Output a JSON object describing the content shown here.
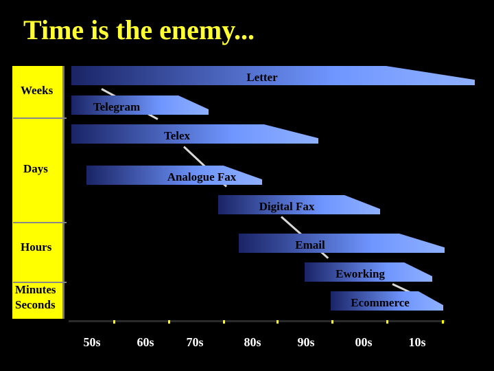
{
  "title": "Time is the enemy...",
  "y_labels": {
    "weeks": "Weeks",
    "days": "Days",
    "hours": "Hours",
    "minutes": "Minutes",
    "seconds": "Seconds"
  },
  "x_labels": [
    "50s",
    "60s",
    "70s",
    "80s",
    "90s",
    "00s",
    "10s"
  ],
  "technologies": [
    {
      "label": "Letter",
      "start": "50s",
      "end": "10s"
    },
    {
      "label": "Telegram",
      "start": "50s",
      "end": "60s"
    },
    {
      "label": "Telex",
      "start": "50s",
      "end": "90s"
    },
    {
      "label": "Analogue Fax",
      "start": "50s",
      "end": "80s"
    },
    {
      "label": "Digital Fax",
      "start": "70s",
      "end": "00s"
    },
    {
      "label": "Email",
      "start": "80s",
      "end": "10s"
    },
    {
      "label": "Eworking",
      "start": "90s",
      "end": "10s"
    },
    {
      "label": "Ecommerce",
      "start": "90s",
      "end": "10s"
    }
  ],
  "colors": {
    "background": "#000000",
    "title": "#ffff33",
    "axis": "#ffff00",
    "bar_light": "#6f96ff",
    "bar_dark": "#1a2466",
    "label_text": "#000000",
    "tick_text": "#ffffff"
  }
}
